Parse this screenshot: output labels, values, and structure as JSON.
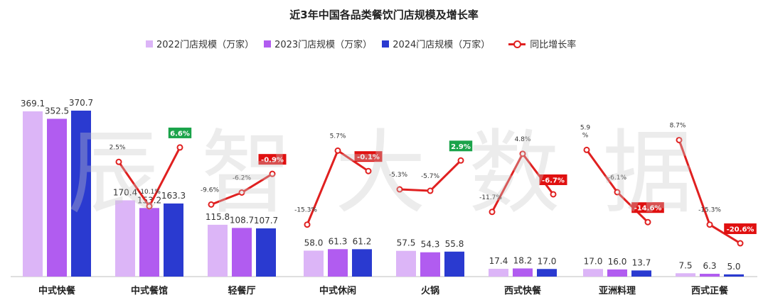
{
  "title": "近3年中国各品类餐饮门店规模及增长率",
  "watermark": "辰智大数据",
  "legend": {
    "s2022": "2022门店规模（万家）",
    "s2023": "2023门店规模（万家）",
    "s2024": "2024门店规模（万家）",
    "growth": "同比增长率"
  },
  "colors": {
    "s2022": "#dcb5f7",
    "s2023": "#b15cf0",
    "s2024": "#2a3ad0",
    "growth": "#e02020",
    "badge_pos": "#1aa34a",
    "badge_neg": "#e01010"
  },
  "chart_data": {
    "type": "bar",
    "categories": [
      "中式快餐",
      "中式餐馆",
      "轻餐厅",
      "中式休闲",
      "火锅",
      "西式快餐",
      "亚洲料理",
      "西式正餐"
    ],
    "series": [
      {
        "name": "2022门店规模（万家）",
        "values": [
          369.1,
          170.4,
          115.8,
          58.0,
          57.5,
          17.4,
          17.0,
          7.5
        ]
      },
      {
        "name": "2023门店规模（万家）",
        "values": [
          352.5,
          153.2,
          108.7,
          61.3,
          54.3,
          18.2,
          16.0,
          6.3
        ]
      },
      {
        "name": "2024门店规模（万家）",
        "values": [
          370.7,
          163.3,
          107.7,
          61.2,
          55.8,
          17.0,
          13.7,
          5.0
        ]
      }
    ],
    "growth_series": {
      "name": "同比增长率",
      "groups": [
        {
          "category": "中式餐馆",
          "labels": [
            "2.5%",
            "-10.1%",
            "6.6%"
          ],
          "values": [
            2.5,
            -10.1,
            6.6
          ]
        },
        {
          "category": "轻餐厅",
          "labels": [
            "-9.6%",
            "-6.2%",
            "-0.9%"
          ],
          "values": [
            -9.6,
            -6.2,
            -0.9
          ]
        },
        {
          "category": "中式休闲",
          "labels": [
            "-15.3%",
            "5.7%",
            "-0.1%"
          ],
          "values": [
            -15.3,
            5.7,
            -0.1
          ]
        },
        {
          "category": "火锅",
          "labels": [
            "-5.3%",
            "-5.7%",
            "2.9%"
          ],
          "values": [
            -5.3,
            -5.7,
            2.9
          ]
        },
        {
          "category": "西式快餐",
          "labels": [
            "-11.7%",
            "4.8%",
            "-6.7%"
          ],
          "values": [
            -11.7,
            4.8,
            -6.7
          ]
        },
        {
          "category": "亚洲料理",
          "labels": [
            "5.9\n%",
            "-6.1%",
            "-14.6%"
          ],
          "values": [
            5.9,
            -6.1,
            -14.6
          ]
        },
        {
          "category": "西式正餐",
          "labels": [
            "8.7%",
            "-15.3%",
            "-20.6%"
          ],
          "values": [
            8.7,
            -15.3,
            -20.6
          ]
        }
      ]
    },
    "ylim": [
      0,
      370.7
    ]
  }
}
